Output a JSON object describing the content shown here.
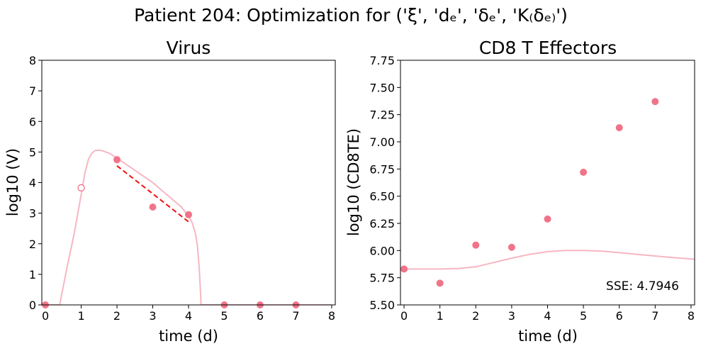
{
  "figure": {
    "suptitle": "Patient 204: Optimization for ('ξ', 'dₑ', 'δₑ', 'K₍δₑ₎')"
  },
  "chart_data": [
    {
      "type": "line",
      "title": "Virus",
      "xlabel": "time (d)",
      "ylabel": "log10 (V)",
      "xlim": [
        -0.1,
        8.1
      ],
      "ylim": [
        0,
        8
      ],
      "xticks": [
        "0",
        "1",
        "2",
        "3",
        "4",
        "5",
        "6",
        "7",
        "8"
      ],
      "yticks": [
        "0",
        "1",
        "2",
        "3",
        "4",
        "5",
        "6",
        "7",
        "8"
      ],
      "colors": {
        "model": "#f7b6c2",
        "points": "#f07489",
        "fit": "#ee1111"
      },
      "model_curve": {
        "x": [
          0,
          0.4,
          0.6,
          0.8,
          1.0,
          1.1,
          1.2,
          1.3,
          1.4,
          1.5,
          1.6,
          1.8,
          2.0,
          2.5,
          3.0,
          3.5,
          3.8,
          4.0,
          4.1,
          4.2,
          4.25,
          4.3,
          4.33,
          4.35,
          8.0
        ],
        "y": [
          0,
          0,
          1.2,
          2.3,
          3.6,
          4.3,
          4.75,
          4.97,
          5.05,
          5.06,
          5.04,
          4.95,
          4.8,
          4.4,
          4.0,
          3.5,
          3.2,
          2.9,
          2.7,
          2.3,
          1.9,
          1.2,
          0.5,
          0,
          0
        ]
      },
      "observed": {
        "x": [
          0,
          2,
          3,
          4,
          5,
          6,
          7
        ],
        "y": [
          0,
          4.75,
          3.2,
          2.95,
          0,
          0,
          0
        ]
      },
      "excluded": {
        "x": [
          1
        ],
        "y": [
          3.83
        ]
      },
      "fit_line": {
        "x": [
          2,
          4
        ],
        "y": [
          4.55,
          2.72
        ]
      }
    },
    {
      "type": "line",
      "title": "CD8 T Effectors",
      "xlabel": "time (d)",
      "ylabel": "log10 (CD8TE)",
      "xlim": [
        -0.1,
        8.1
      ],
      "ylim": [
        5.5,
        7.75
      ],
      "xticks": [
        "0",
        "1",
        "2",
        "3",
        "4",
        "5",
        "6",
        "7",
        "8"
      ],
      "yticks": [
        "5.50",
        "5.75",
        "6.00",
        "6.25",
        "6.50",
        "6.75",
        "7.00",
        "7.25",
        "7.50",
        "7.75"
      ],
      "colors": {
        "model": "#f7b6c2",
        "points": "#f07489"
      },
      "model_curve": {
        "x": [
          0,
          1,
          1.5,
          2,
          2.5,
          3,
          3.5,
          4,
          4.5,
          5,
          5.5,
          6,
          6.5,
          7,
          7.5,
          8.1
        ],
        "y": [
          5.83,
          5.83,
          5.834,
          5.85,
          5.89,
          5.93,
          5.965,
          5.99,
          6.0,
          6.0,
          5.995,
          5.98,
          5.965,
          5.95,
          5.935,
          5.92
        ]
      },
      "observed": {
        "x": [
          0,
          1,
          2,
          3,
          4,
          5,
          6,
          7
        ],
        "y": [
          5.83,
          5.7,
          6.05,
          6.03,
          6.29,
          6.72,
          7.13,
          7.37
        ]
      },
      "annotation": "SSE: 4.7946"
    }
  ]
}
